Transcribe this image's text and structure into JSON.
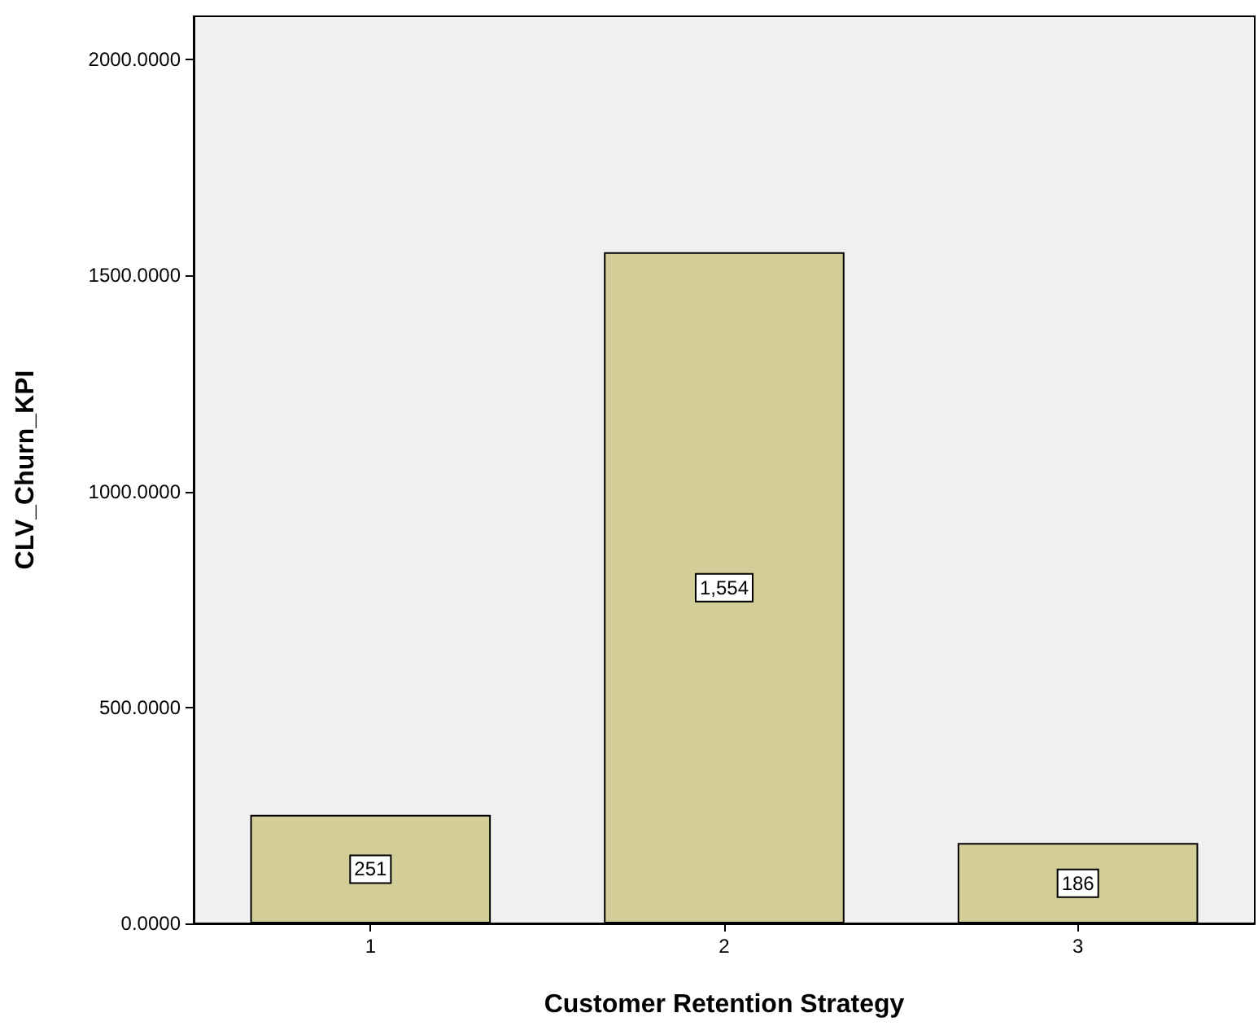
{
  "chart_data": {
    "type": "bar",
    "xlabel": "Customer Retention Strategy",
    "ylabel": "CLV_Churn_KPI",
    "categories": [
      "1",
      "2",
      "3"
    ],
    "values": [
      251,
      1554,
      186
    ],
    "value_labels": [
      "251",
      "1,554",
      "186"
    ],
    "color": "#d3ce97",
    "ylim": [
      0,
      2100
    ],
    "yticks": [
      {
        "value": 0,
        "label": "0.0000"
      },
      {
        "value": 500,
        "label": "500.0000"
      },
      {
        "value": 1000,
        "label": "1000.0000"
      },
      {
        "value": 1500,
        "label": "1500.0000"
      },
      {
        "value": 2000,
        "label": "2000.0000"
      }
    ]
  }
}
